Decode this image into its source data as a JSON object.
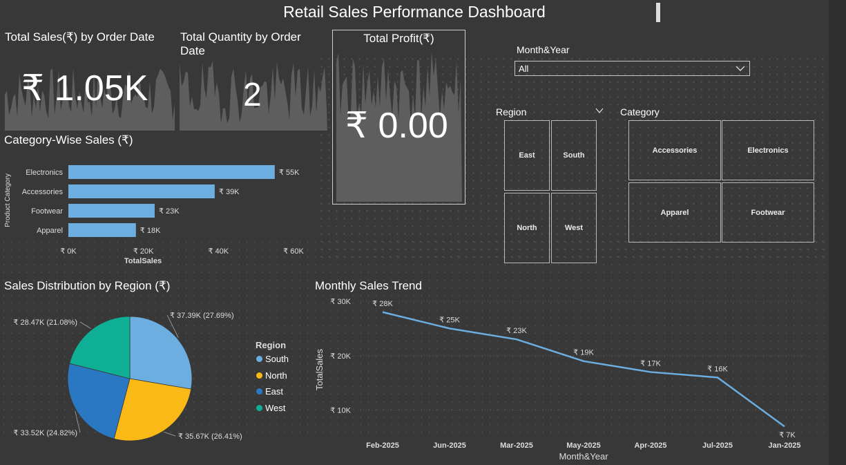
{
  "dashboard_title": "Retail Sales Performance Dashboard",
  "colors": {
    "bar": "#6CAEE0",
    "line": "#6CAEE0",
    "sparkline": "#5e5e5e",
    "south": "#6CAEE0",
    "north": "#FBB917",
    "east": "#2B78C2",
    "west": "#0FAF95"
  },
  "kpis": {
    "sales": {
      "title": "Total Sales(₹) by Order Date",
      "value": "₹ 1.05K"
    },
    "quantity": {
      "title": "Total Quantity by Order Date",
      "value": "2"
    },
    "profit": {
      "title": "Total Profit(₹)",
      "value": "₹ 0.00"
    }
  },
  "slicers": {
    "month_year": {
      "label": "Month&Year",
      "selected": "All"
    },
    "region": {
      "label": "Region",
      "items": [
        "East",
        "South",
        "North",
        "West"
      ]
    },
    "category": {
      "label": "Category",
      "items": [
        "Accessories",
        "Electronics",
        "Apparel",
        "Footwear"
      ]
    }
  },
  "chart_data": [
    {
      "type": "bar",
      "title": "Category-Wise Sales (₹)",
      "xlabel": "TotalSales",
      "ylabel": "Product Category",
      "categories": [
        "Electronics",
        "Accessories",
        "Footwear",
        "Apparel"
      ],
      "values": [
        55000,
        39000,
        23000,
        18000
      ],
      "data_labels": [
        "₹ 55K",
        "₹ 39K",
        "₹ 23K",
        "₹ 18K"
      ],
      "xlim": [
        0,
        60000
      ],
      "xticks": [
        0,
        20000,
        40000,
        60000
      ],
      "xtick_labels": [
        "₹ 0K",
        "₹ 20K",
        "₹ 40K",
        "₹ 60K"
      ]
    },
    {
      "type": "pie",
      "title": "Sales Distribution by Region (₹)",
      "legend_title": "Region",
      "legend_position": "right",
      "slices": [
        {
          "name": "South",
          "value": 37.39,
          "label": "₹ 37.39K (27.69%)"
        },
        {
          "name": "North",
          "value": 35.67,
          "label": "₹ 35.67K (26.41%)"
        },
        {
          "name": "East",
          "value": 33.52,
          "label": "₹ 33.52K (24.82%)"
        },
        {
          "name": "West",
          "value": 28.47,
          "label": "₹ 28.47K (21.08%)"
        }
      ]
    },
    {
      "type": "line",
      "title": "Monthly Sales Trend",
      "xlabel": "Month&Year",
      "ylabel": "TotalSales",
      "x": [
        "Feb-2025",
        "Jun-2025",
        "Mar-2025",
        "May-2025",
        "Apr-2025",
        "Jul-2025",
        "Jan-2025"
      ],
      "values": [
        28000,
        25000,
        23000,
        19000,
        17000,
        16000,
        7000
      ],
      "data_labels": [
        "₹ 28K",
        "₹ 25K",
        "₹ 23K",
        "₹ 19K",
        "₹ 17K",
        "₹ 16K",
        "₹ 7K"
      ],
      "ylim": [
        5000,
        30000
      ],
      "yticks": [
        10000,
        20000,
        30000
      ],
      "ytick_labels": [
        "₹ 10K",
        "₹ 20K",
        "₹ 30K"
      ],
      "grid": true
    }
  ]
}
